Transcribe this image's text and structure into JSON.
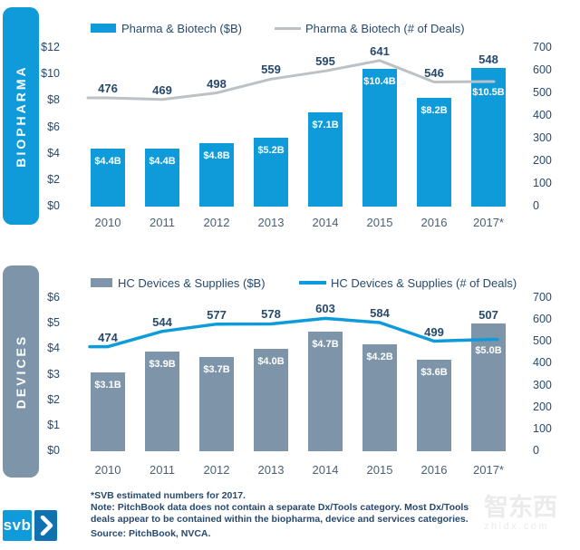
{
  "colors": {
    "blue": "#0F9BDA",
    "slate": "#7E95A9",
    "navy": "#27496D",
    "line_gray": "#BCC1C6",
    "logo_dark": "#1172B2",
    "watermark_gray": "#EBEBEB"
  },
  "chart_data": [
    {
      "type": "bar+line",
      "section_label": "BIOPHARMA",
      "categories": [
        "2010",
        "2011",
        "2012",
        "2013",
        "2014",
        "2015",
        "2016",
        "2017*"
      ],
      "series": [
        {
          "name": "Pharma & Biotech ($B)",
          "type": "bar",
          "axis": "left",
          "color": "#0F9BDA",
          "values": [
            4.4,
            4.4,
            4.8,
            5.2,
            7.1,
            10.4,
            8.2,
            10.5
          ],
          "labels": [
            "$4.4B",
            "$4.4B",
            "$4.8B",
            "$5.2B",
            "$7.1B",
            "$10.4B",
            "$8.2B",
            "$10.5B"
          ]
        },
        {
          "name": "Pharma & Biotech (# of Deals)",
          "type": "line",
          "axis": "right",
          "color": "#BCC1C6",
          "values": [
            476,
            469,
            498,
            559,
            595,
            641,
            546,
            548
          ]
        }
      ],
      "left_axis": {
        "ticks": [
          "$12",
          "$10",
          "$8",
          "$6",
          "$4",
          "$2",
          "$0"
        ],
        "min": 0,
        "max": 12
      },
      "right_axis": {
        "ticks": [
          "700",
          "600",
          "500",
          "400",
          "300",
          "200",
          "100",
          "0"
        ],
        "min": 0,
        "max": 700
      },
      "grid": false,
      "legend_position": "top"
    },
    {
      "type": "bar+line",
      "section_label": "DEVICES",
      "categories": [
        "2010",
        "2011",
        "2012",
        "2013",
        "2014",
        "2015",
        "2016",
        "2017*"
      ],
      "series": [
        {
          "name": "HC Devices & Supplies ($B)",
          "type": "bar",
          "axis": "left",
          "color": "#7E95A9",
          "values": [
            3.1,
            3.9,
            3.7,
            4.0,
            4.7,
            4.2,
            3.6,
            5.0
          ],
          "labels": [
            "$3.1B",
            "$3.9B",
            "$3.7B",
            "$4.0B",
            "$4.7B",
            "$4.2B",
            "$3.6B",
            "$5.0B"
          ]
        },
        {
          "name": "HC Devices & Supplies (# of Deals)",
          "type": "line",
          "axis": "right",
          "color": "#0F9BDA",
          "values": [
            474,
            544,
            577,
            578,
            603,
            584,
            499,
            507
          ]
        }
      ],
      "left_axis": {
        "ticks": [
          "$6",
          "$5",
          "$4",
          "$3",
          "$2",
          "$1",
          "$0"
        ],
        "min": 0,
        "max": 6
      },
      "right_axis": {
        "ticks": [
          "700",
          "600",
          "500",
          "400",
          "300",
          "200",
          "100",
          "0"
        ],
        "min": 0,
        "max": 700
      },
      "grid": false,
      "legend_position": "top"
    }
  ],
  "footer": {
    "footnote": "*SVB estimated numbers for 2017.",
    "note": "Note: PitchBook data does not contain a separate Dx/Tools category. Most Dx/Tools deals appear to be contained within the biopharma, device and services categories.",
    "source": "Source: PitchBook, NVCA."
  },
  "logo": {
    "text": "svb"
  },
  "watermark": {
    "cjk": "智东西",
    "domain": "zhidx.com"
  }
}
